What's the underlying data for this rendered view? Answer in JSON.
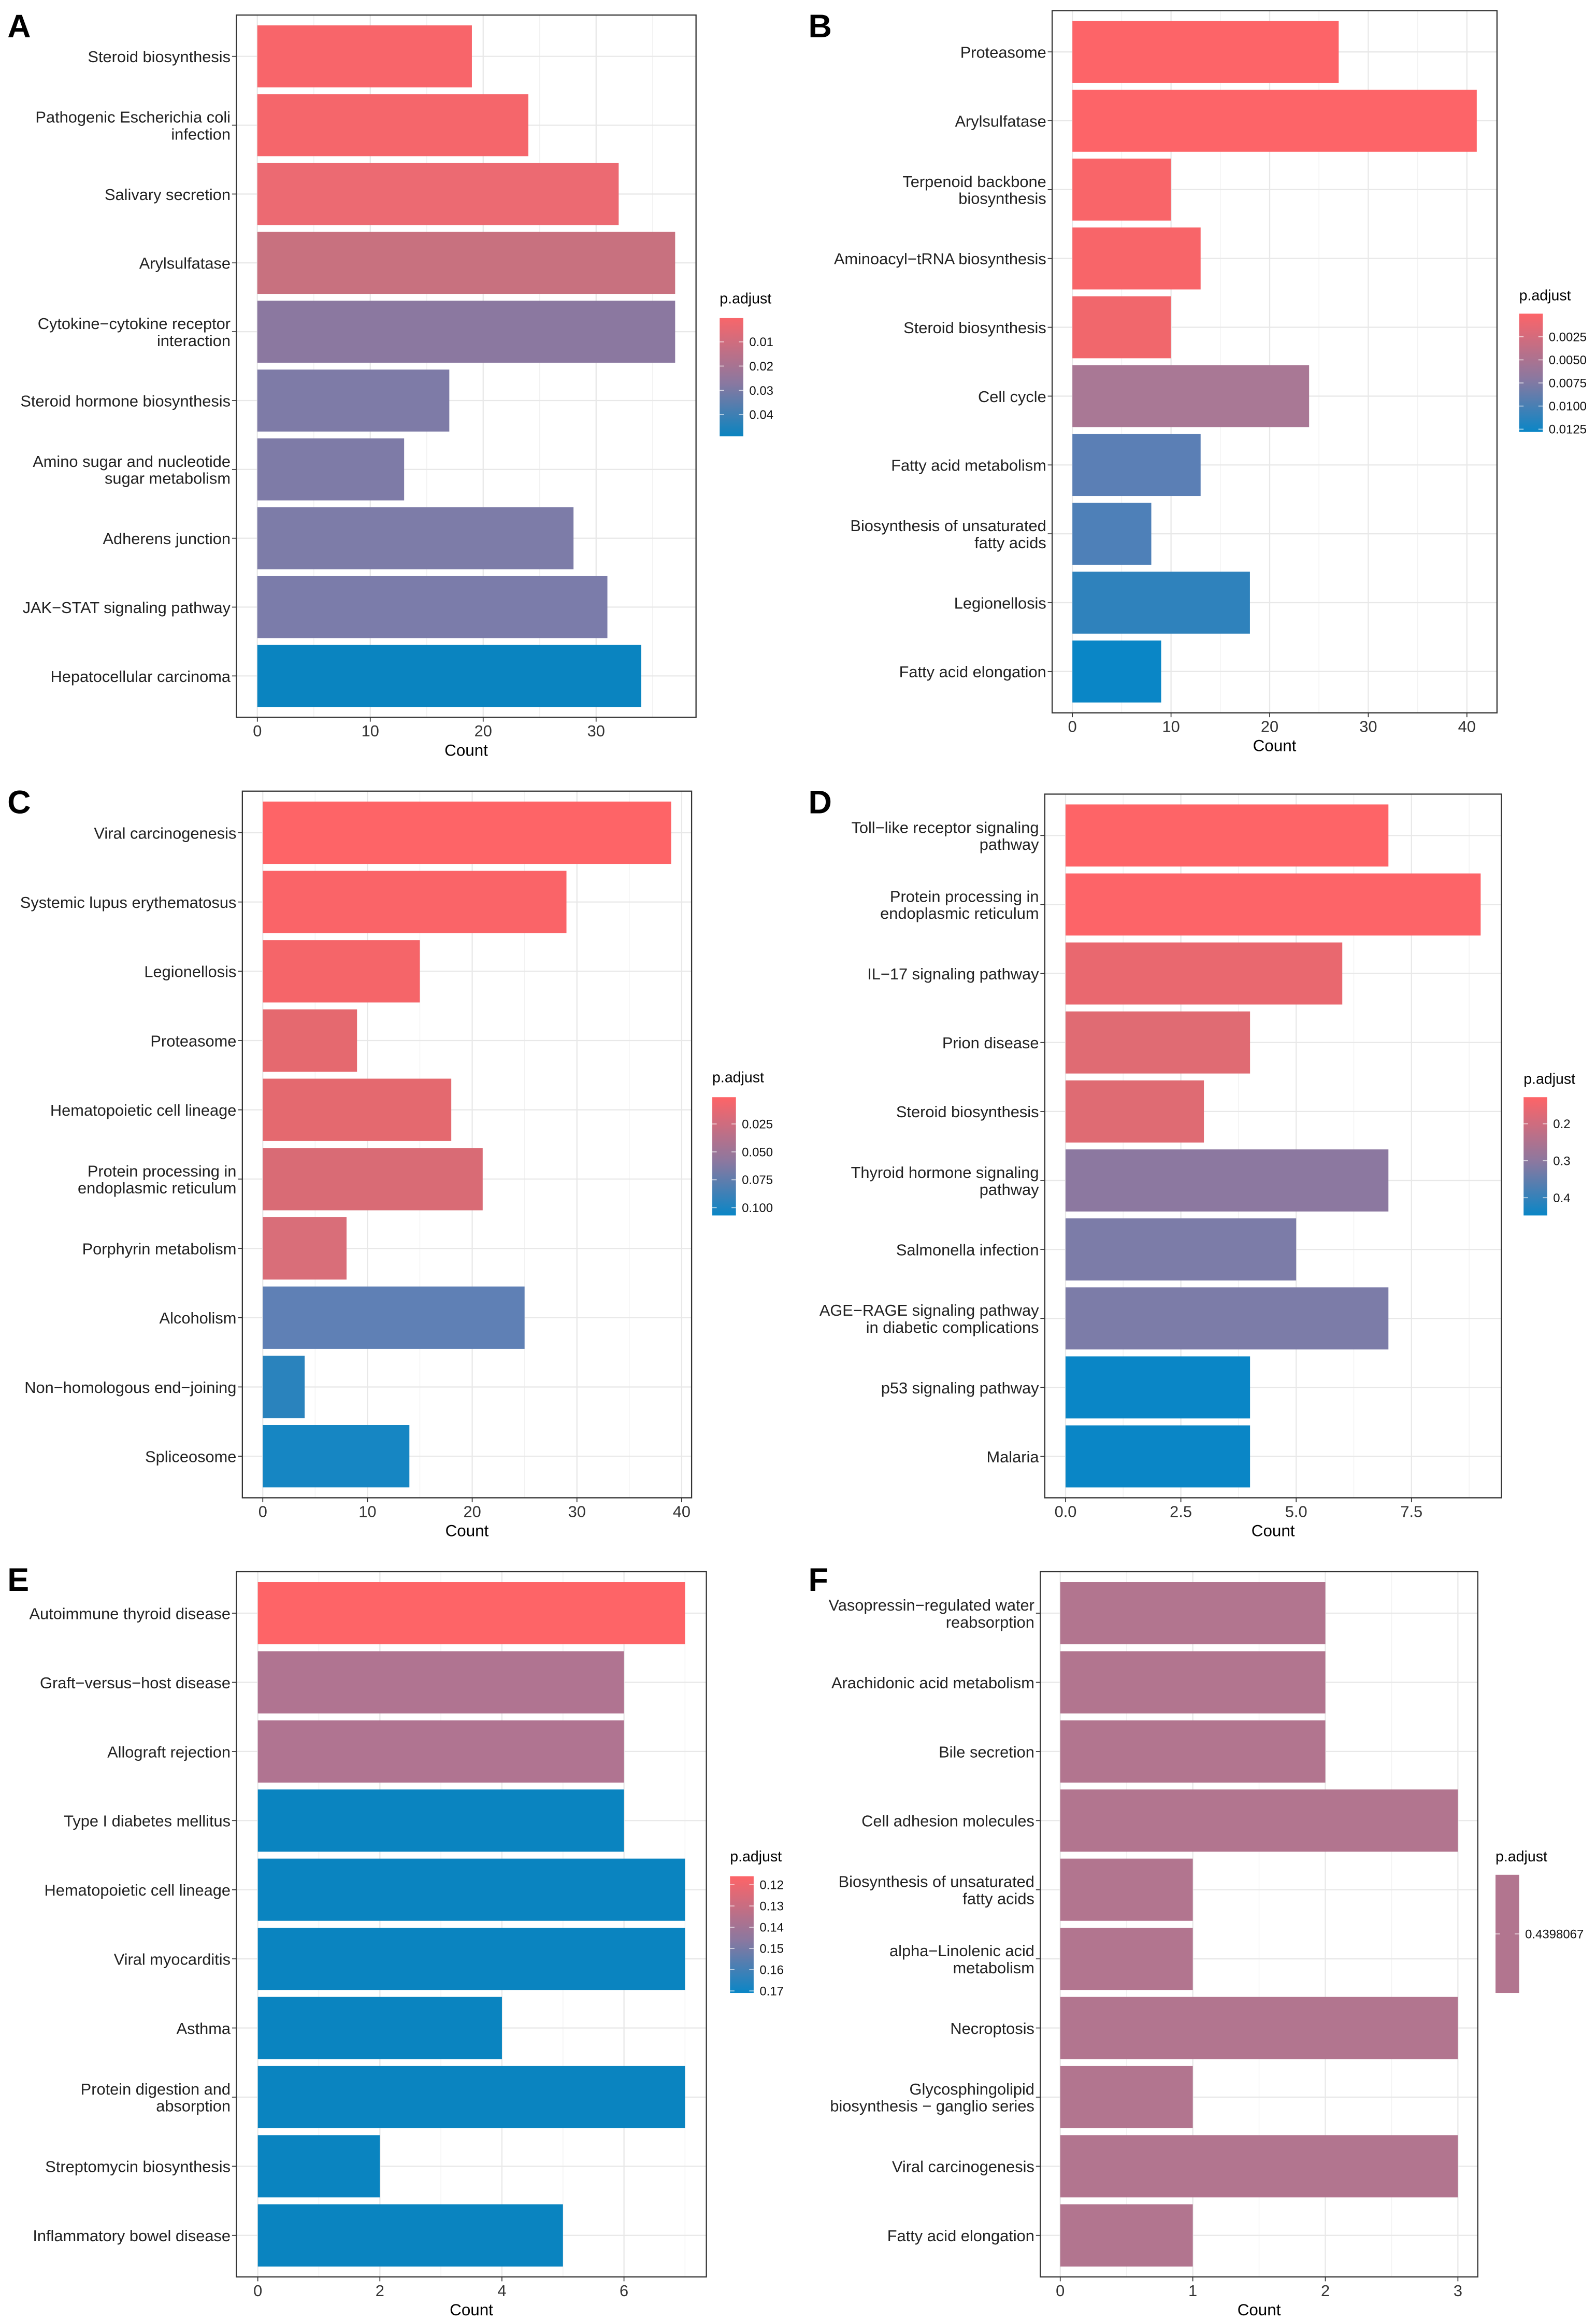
{
  "chart_data": [
    {
      "panel": "A",
      "type": "bar",
      "orientation": "horizontal",
      "xlabel": "Count",
      "xlim": [
        -1.85,
        38.85
      ],
      "xticks": [
        "0",
        "10",
        "20",
        "30"
      ],
      "xtick_values": [
        0,
        10,
        20,
        30
      ],
      "grid": true,
      "categories": [
        "Steroid biosynthesis",
        "Pathogenic Escherichia coli\ninfection",
        "Salivary secretion",
        "Arylsulfatase",
        "Cytokine−cytokine receptor\ninteraction",
        "Steroid hormone biosynthesis",
        "Amino sugar and nucleotide\nsugar metabolism",
        "Adherens junction",
        "JAK−STAT signaling pathway",
        "Hepatocellular carcinoma"
      ],
      "values": [
        19,
        24,
        32,
        37,
        37,
        17,
        13,
        28,
        31,
        34
      ],
      "colors": [
        "#f8656a",
        "#f5666b",
        "#ec6a72",
        "#c8717f",
        "#8b78a0",
        "#7e7ba7",
        "#7e7ba7",
        "#7d7ca8",
        "#7b7caa",
        "#0a84c0"
      ],
      "legend": {
        "title": "p.adjust",
        "labels": [
          "0.01",
          "0.02",
          "0.03",
          "0.04"
        ],
        "values": [
          0.01,
          0.02,
          0.03,
          0.04
        ],
        "range": [
          0.0002,
          0.049
        ],
        "low_color": "#f8666a",
        "high_color": "#0a84c0"
      }
    },
    {
      "panel": "B",
      "type": "bar",
      "orientation": "horizontal",
      "xlabel": "Count",
      "xlim": [
        -2.05,
        43.05
      ],
      "xticks": [
        "0",
        "10",
        "20",
        "30",
        "40"
      ],
      "xtick_values": [
        0,
        10,
        20,
        30,
        40
      ],
      "grid": true,
      "categories": [
        "Proteasome",
        "Arylsulfatase",
        "Terpenoid backbone\nbiosynthesis",
        "Aminoacyl−tRNA biosynthesis",
        "Steroid biosynthesis",
        "Cell cycle",
        "Fatty acid metabolism",
        "Biosynthesis of unsaturated\nfatty acids",
        "Legionellosis",
        "Fatty acid elongation"
      ],
      "values": [
        27,
        41,
        10,
        13,
        10,
        24,
        13,
        8,
        18,
        9
      ],
      "colors": [
        "#fd6468",
        "#fd6468",
        "#f96569",
        "#f86569",
        "#f1676c",
        "#a97895",
        "#5b7fb5",
        "#4e80b8",
        "#2f82bc",
        "#0a86c6"
      ],
      "legend": {
        "title": "p.adjust",
        "labels": [
          "0.0025",
          "0.0050",
          "0.0075",
          "0.0100",
          "0.0125"
        ],
        "values": [
          0.0025,
          0.005,
          0.0075,
          0.01,
          0.0125
        ],
        "range": [
          0.0,
          0.0128
        ],
        "low_color": "#fd6468",
        "high_color": "#0a86c6"
      }
    },
    {
      "panel": "C",
      "type": "bar",
      "orientation": "horizontal",
      "xlabel": "Count",
      "xlim": [
        -1.95,
        40.95
      ],
      "xticks": [
        "0",
        "10",
        "20",
        "30",
        "40"
      ],
      "xtick_values": [
        0,
        10,
        20,
        30,
        40
      ],
      "grid": true,
      "categories": [
        "Viral carcinogenesis",
        "Systemic lupus erythematosus",
        "Legionellosis",
        "Proteasome",
        "Hematopoietic cell lineage",
        "Protein processing in\nendoplasmic reticulum",
        "Porphyrin metabolism",
        "Alcoholism",
        "Non−homologous end−joining",
        "Spliceosome"
      ],
      "values": [
        39,
        29,
        15,
        9,
        18,
        21,
        8,
        25,
        4,
        14
      ],
      "colors": [
        "#fe6467",
        "#fa6468",
        "#f56569",
        "#e5696f",
        "#e4696f",
        "#d96b75",
        "#d96e79",
        "#5f80b5",
        "#2a83bd",
        "#1686c3"
      ],
      "legend": {
        "title": "p.adjust",
        "labels": [
          "0.025",
          "0.050",
          "0.075",
          "0.100"
        ],
        "values": [
          0.025,
          0.05,
          0.075,
          0.1
        ],
        "range": [
          0.001,
          0.107
        ],
        "low_color": "#fe6467",
        "high_color": "#0a86c6"
      }
    },
    {
      "panel": "D",
      "type": "bar",
      "orientation": "horizontal",
      "xlabel": "Count",
      "xlim": [
        -0.45,
        9.45
      ],
      "xticks": [
        "0.0",
        "2.5",
        "5.0",
        "7.5"
      ],
      "xtick_values": [
        0,
        2.5,
        5,
        7.5
      ],
      "grid": true,
      "categories": [
        "Toll−like receptor signaling\npathway",
        "Protein processing in\nendoplasmic reticulum",
        "IL−17 signaling pathway",
        "Prion disease",
        "Steroid biosynthesis",
        "Thyroid hormone signaling\npathway",
        "Salmonella infection",
        "AGE−RAGE signaling pathway\nin diabetic complications",
        "p53 signaling pathway",
        "Malaria"
      ],
      "values": [
        7,
        9,
        6,
        4,
        3,
        7,
        5,
        7,
        4,
        4
      ],
      "colors": [
        "#fe6467",
        "#fd6468",
        "#e9686f",
        "#e06b73",
        "#df6b73",
        "#8c78a0",
        "#7c7ca8",
        "#7c7ca8",
        "#0a86c6",
        "#0a86c6"
      ],
      "legend": {
        "title": "p.adjust",
        "labels": [
          "0.2",
          "0.3",
          "0.4"
        ],
        "values": [
          0.2,
          0.3,
          0.4
        ],
        "range": [
          0.128,
          0.448
        ],
        "low_color": "#fe6467",
        "high_color": "#0a86c6"
      }
    },
    {
      "panel": "E",
      "type": "bar",
      "orientation": "horizontal",
      "xlabel": "Count",
      "xlim": [
        -0.35,
        7.35
      ],
      "xticks": [
        "0",
        "2",
        "4",
        "6"
      ],
      "xtick_values": [
        0,
        2,
        4,
        6
      ],
      "grid": true,
      "categories": [
        "Autoimmune thyroid disease",
        "Graft−versus−host disease",
        "Allograft rejection",
        "Type I diabetes mellitus",
        "Hematopoietic cell lineage",
        "Viral myocarditis",
        "Asthma",
        "Protein digestion and\nabsorption",
        "Streptomycin biosynthesis",
        "Inflammatory bowel disease"
      ],
      "values": [
        7,
        6,
        6,
        6,
        7,
        7,
        4,
        7,
        2,
        5
      ],
      "colors": [
        "#fe6467",
        "#b07491",
        "#b07491",
        "#0a84c0",
        "#0a84c0",
        "#0a84c0",
        "#0a84c0",
        "#0a84c0",
        "#0a84c0",
        "#0a84c0"
      ],
      "legend": {
        "title": "p.adjust",
        "labels": [
          "0.12",
          "0.13",
          "0.14",
          "0.15",
          "0.16",
          "0.17"
        ],
        "values": [
          0.12,
          0.13,
          0.14,
          0.15,
          0.16,
          0.17
        ],
        "range": [
          0.116,
          0.171
        ],
        "low_color": "#fe6467",
        "high_color": "#0a86c6"
      }
    },
    {
      "panel": "F",
      "type": "bar",
      "orientation": "horizontal",
      "xlabel": "Count",
      "xlim": [
        -0.15,
        3.15
      ],
      "xticks": [
        "0",
        "1",
        "2",
        "3"
      ],
      "xtick_values": [
        0,
        1,
        2,
        3
      ],
      "grid": true,
      "categories": [
        "Vasopressin−regulated water\nreabsorption",
        "Arachidonic acid metabolism",
        "Bile secretion",
        "Cell adhesion molecules",
        "Biosynthesis of unsaturated\nfatty acids",
        "alpha−Linolenic acid\nmetabolism",
        "Necroptosis",
        "Glycosphingolipid\nbiosynthesis − ganglio series",
        "Viral carcinogenesis",
        "Fatty acid elongation"
      ],
      "values": [
        2,
        2,
        2,
        3,
        1,
        1,
        3,
        1,
        3,
        1
      ],
      "colors": [
        "#b2758f",
        "#b2758f",
        "#b2758f",
        "#b2758f",
        "#b2758f",
        "#b2758f",
        "#b2758f",
        "#b2758f",
        "#b2758f",
        "#b2758f"
      ],
      "legend": {
        "title": "p.adjust",
        "labels": [
          "0.4398067"
        ],
        "values": [
          0.4398067
        ],
        "range": [
          0.4,
          0.48
        ],
        "low_color": "#b2758f",
        "high_color": "#b2758f"
      }
    }
  ]
}
